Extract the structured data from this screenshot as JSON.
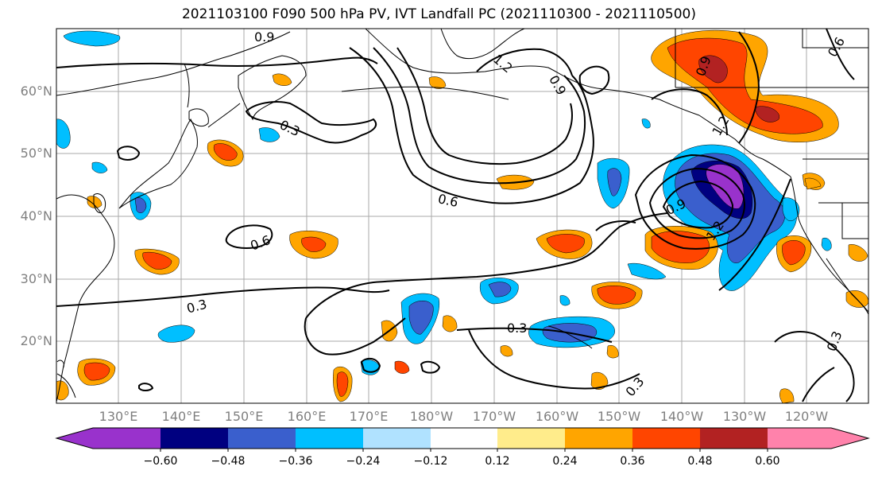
{
  "title": "2021103100 F090 500 hPa PV, IVT Landfall PC (2021110300 - 2021110500)",
  "lat_labels": [
    "60°N",
    "50°N",
    "40°N",
    "30°N",
    "20°N"
  ],
  "lon_labels": [
    "130°E",
    "140°E",
    "150°E",
    "160°E",
    "170°E",
    "180°W",
    "170°W",
    "160°W",
    "150°W",
    "140°W",
    "130°W",
    "120°W"
  ],
  "contour_labels": [
    "0.9",
    "0.3",
    "0.6",
    "0.6",
    "0.3",
    "0.3",
    "0.3",
    "0.9",
    "0.9",
    "1.2",
    "1.2",
    "0.3",
    "0.6",
    "0.9",
    "1.2"
  ],
  "colorbar": {
    "ticks": [
      "−0.60",
      "−0.48",
      "−0.36",
      "−0.24",
      "−0.12",
      "0.12",
      "0.24",
      "0.36",
      "0.48",
      "0.60"
    ],
    "colors": [
      "#9932cc",
      "#000080",
      "#3a5fcd",
      "#00bfff",
      "#b0e2ff",
      "#ffffff",
      "#ffec8b",
      "#ffa500",
      "#ff4500",
      "#b22222",
      "#ff82ab"
    ]
  },
  "colors": {
    "grid": "#aaaaaa",
    "coast": "#000000",
    "contour": "#000000",
    "axis_label": "#7f7f7f"
  }
}
